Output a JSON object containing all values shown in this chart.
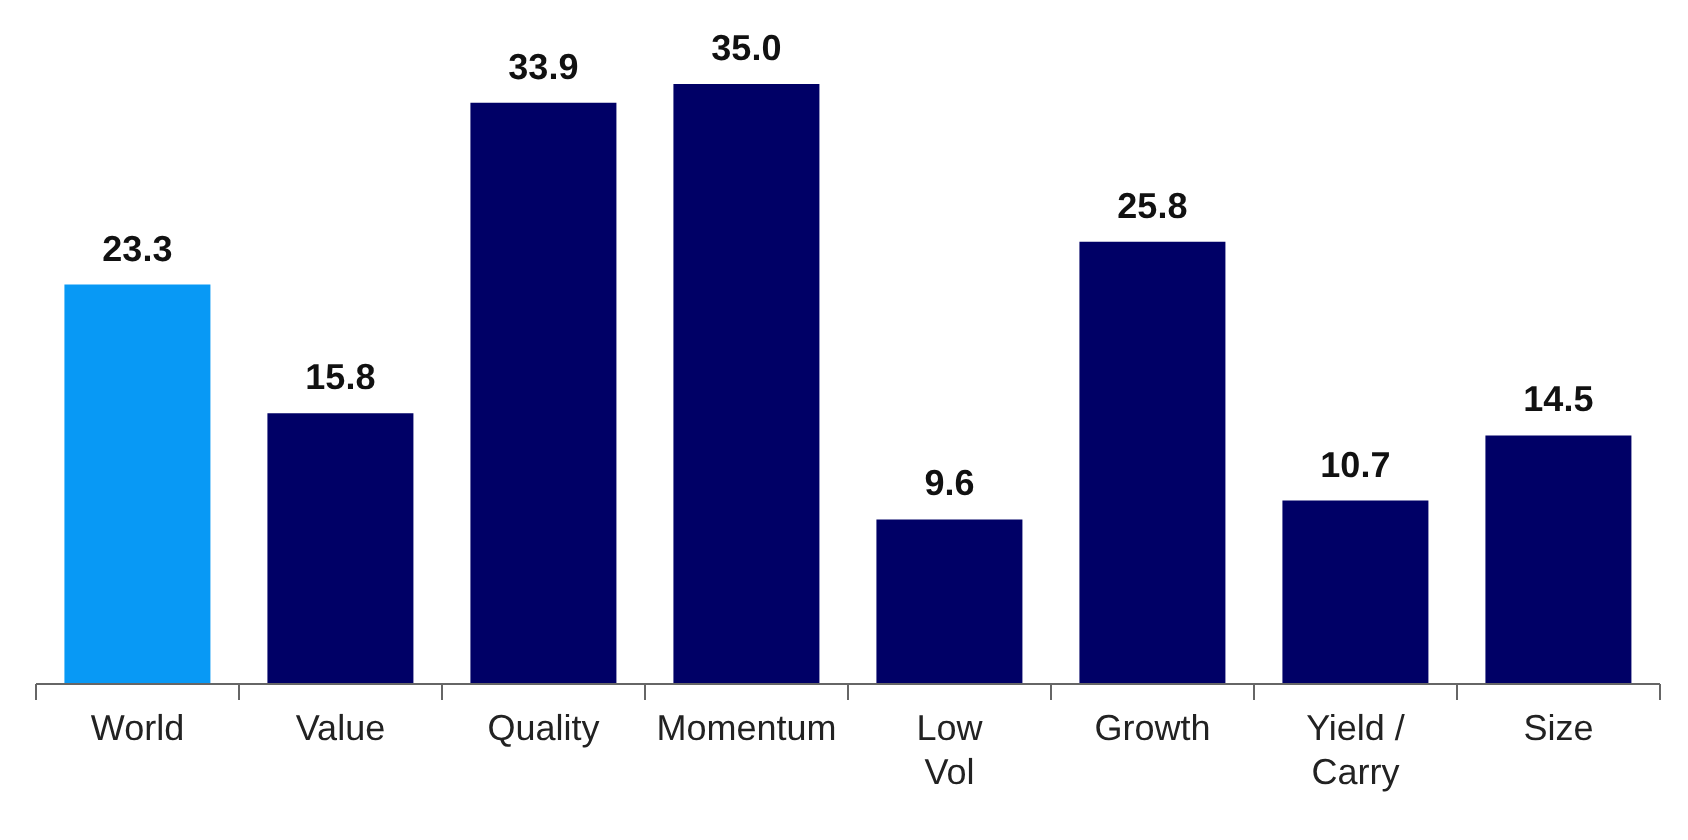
{
  "chart_data": {
    "type": "bar",
    "categories": [
      "World",
      "Value",
      "Quality",
      "Momentum",
      "Low Vol",
      "Growth",
      "Yield / Carry",
      "Size"
    ],
    "values": [
      23.3,
      15.8,
      33.9,
      35.0,
      9.6,
      25.8,
      10.7,
      14.5
    ],
    "colors": [
      "#0899f5",
      "#000066",
      "#000066",
      "#000066",
      "#000066",
      "#000066",
      "#000066",
      "#000066"
    ],
    "value_labels": [
      "23.3",
      "15.8",
      "33.9",
      "35.0",
      "9.6",
      "25.8",
      "10.7",
      "14.5"
    ],
    "grid": false,
    "legend": false
  }
}
